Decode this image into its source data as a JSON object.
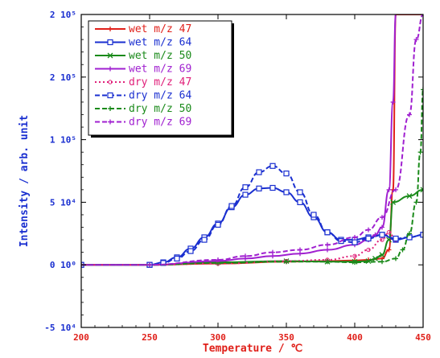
{
  "chart_data": {
    "type": "line",
    "xlabel": "Temperature / ℃",
    "ylabel": "Intensity / arb. unit",
    "xlim": [
      200,
      450
    ],
    "ylim": [
      -50000,
      200000
    ],
    "xticks": [
      200,
      250,
      300,
      350,
      400,
      450
    ],
    "xtick_labels": [
      "200",
      "250",
      "300",
      "350",
      "400",
      "450"
    ],
    "yticks": [
      -50000,
      0,
      50000,
      100000,
      150000,
      200000
    ],
    "ytick_labels": [
      "-5 10⁴",
      "0 10⁰",
      "5 10⁴",
      "1 10⁵",
      "2 10⁵",
      "2 10⁵"
    ],
    "legend_position": "top-left",
    "grid": false,
    "series": [
      {
        "name": "wet  m/z 47",
        "color": "#e0201a",
        "dash": "solid",
        "marker": "plus",
        "x": [
          200,
          250,
          300,
          350,
          380,
          400,
          410,
          420,
          425,
          428,
          430,
          435,
          445,
          450
        ],
        "y": [
          0,
          0,
          1000,
          2500,
          3000,
          3500,
          4000,
          5000,
          12000,
          60000,
          200000,
          200000,
          200000,
          200000
        ]
      },
      {
        "name": "wet  m/z 64",
        "color": "#1a2fd0",
        "dash": "solid",
        "marker": "square",
        "x": [
          200,
          250,
          260,
          270,
          280,
          290,
          300,
          310,
          320,
          330,
          340,
          350,
          360,
          370,
          380,
          390,
          400,
          410,
          420,
          430,
          440,
          450
        ],
        "y": [
          0,
          0,
          2000,
          6000,
          13000,
          22000,
          33000,
          46000,
          56000,
          61000,
          61500,
          58000,
          50000,
          38000,
          26000,
          20000,
          20000,
          22000,
          24000,
          20000,
          22000,
          24000
        ]
      },
      {
        "name": "wet  m/z 50",
        "color": "#1a8a1a",
        "dash": "solid",
        "marker": "x",
        "x": [
          200,
          250,
          300,
          350,
          380,
          400,
          410,
          415,
          420,
          425,
          428,
          440,
          450
        ],
        "y": [
          0,
          0,
          2000,
          3000,
          2500,
          2500,
          3000,
          5000,
          8000,
          20000,
          50000,
          55000,
          60000
        ]
      },
      {
        "name": "wet  m/z 69",
        "color": "#a020d0",
        "dash": "solid",
        "marker": "plus",
        "x": [
          200,
          250,
          300,
          320,
          340,
          360,
          380,
          400,
          410,
          415,
          420,
          425,
          428,
          430
        ],
        "y": [
          0,
          0,
          3000,
          5000,
          7000,
          9000,
          12000,
          16000,
          20000,
          24000,
          30000,
          60000,
          130000,
          200000
        ]
      },
      {
        "name": "dry  m/z 47",
        "color": "#e0207a",
        "dash": "dotted",
        "marker": "circle",
        "x": [
          200,
          250,
          300,
          350,
          380,
          400,
          410,
          420,
          425,
          430
        ],
        "y": [
          0,
          0,
          1000,
          3000,
          4000,
          7000,
          12000,
          20000,
          26000,
          20000
        ]
      },
      {
        "name": "dry  m/z 64",
        "color": "#1a2fd0",
        "dash": "dashed",
        "marker": "square",
        "x": [
          200,
          250,
          260,
          270,
          280,
          290,
          300,
          310,
          320,
          330,
          340,
          350,
          360,
          370,
          380,
          390,
          400,
          410,
          420,
          430,
          440,
          450
        ],
        "y": [
          0,
          0,
          1500,
          5000,
          11000,
          20000,
          32000,
          47000,
          62000,
          74000,
          79000,
          73000,
          58000,
          40000,
          26000,
          19000,
          18000,
          21000,
          24000,
          21000,
          22000,
          24000
        ]
      },
      {
        "name": "dry  m/z 50",
        "color": "#1a8a1a",
        "dash": "dashed",
        "marker": "plus",
        "x": [
          200,
          250,
          300,
          350,
          380,
          400,
          420,
          430,
          435,
          440,
          445,
          448,
          450
        ],
        "y": [
          0,
          0,
          1500,
          2500,
          2500,
          2000,
          2500,
          5000,
          12000,
          25000,
          50000,
          90000,
          140000
        ]
      },
      {
        "name": "dry  m/z 69",
        "color": "#a020d0",
        "dash": "dashed",
        "marker": "plus",
        "x": [
          200,
          250,
          300,
          320,
          340,
          360,
          380,
          400,
          410,
          420,
          430,
          440,
          445,
          450
        ],
        "y": [
          0,
          0,
          4000,
          7000,
          10000,
          12000,
          16000,
          22000,
          28000,
          38000,
          60000,
          120000,
          180000,
          200000
        ]
      }
    ]
  }
}
